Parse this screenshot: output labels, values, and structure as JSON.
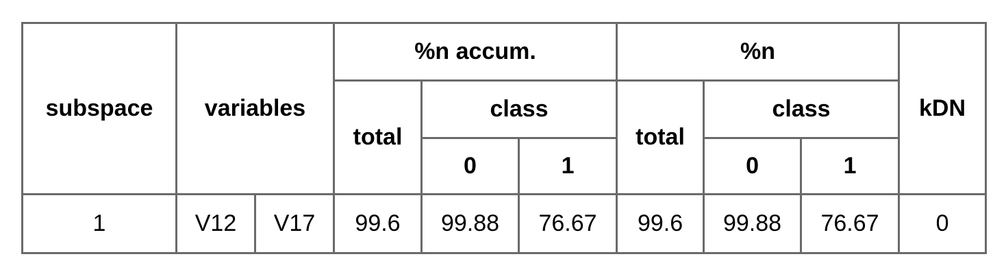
{
  "header": {
    "subspace": "subspace",
    "variables": "variables",
    "n_accum": "%n accum.",
    "n": "%n",
    "kdn": "kDN",
    "total": "total",
    "class": "class",
    "class_0": "0",
    "class_1": "1"
  },
  "rows": [
    {
      "subspace": "1",
      "variables": [
        "V12",
        "V17"
      ],
      "n_accum": {
        "total": "99.6",
        "class_0": "99.88",
        "class_1": "76.67"
      },
      "n": {
        "total": "99.6",
        "class_0": "99.88",
        "class_1": "76.67"
      },
      "kdn": "0"
    }
  ],
  "colors": {
    "border": "#6a6a6a",
    "background": "#ffffff",
    "text": "#000000"
  }
}
